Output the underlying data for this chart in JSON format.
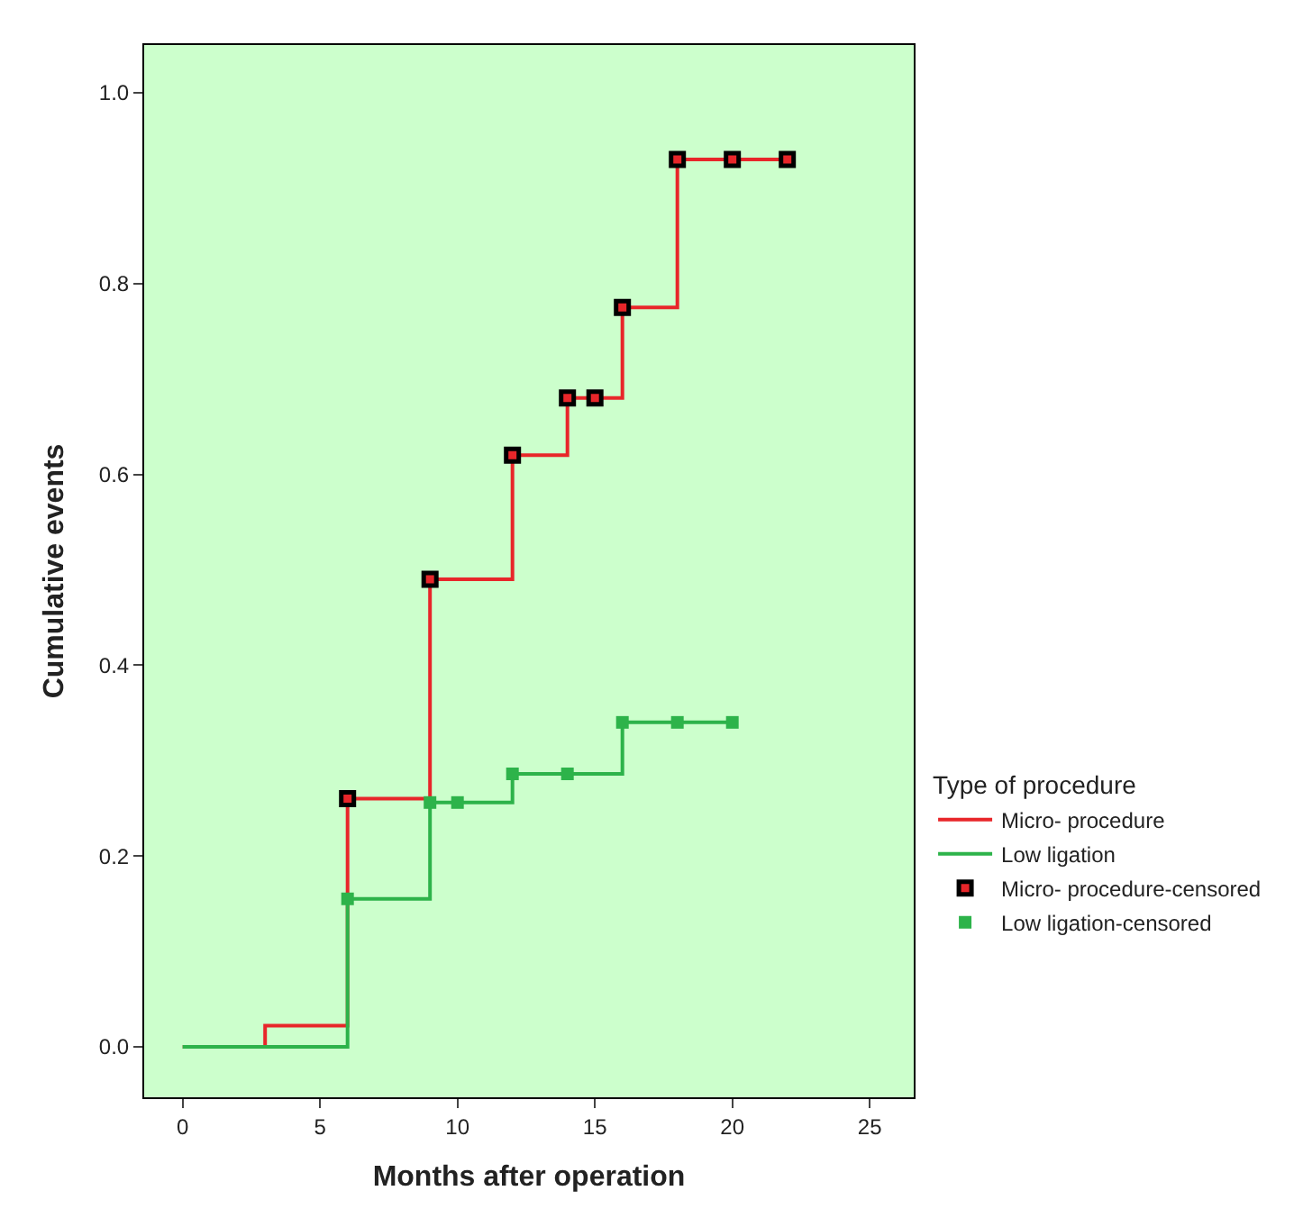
{
  "chart_data": {
    "type": "step",
    "xlabel": "Months after operation",
    "ylabel": "Cumulative events",
    "legend_title": "Type of procedure",
    "legend": "right",
    "grid": false,
    "xlim": [
      -1.4,
      26.6
    ],
    "xticks": [
      0,
      5,
      10,
      15,
      20,
      25
    ],
    "ylim": [
      -0.053,
      1.05
    ],
    "yticks": [
      {
        "value": 0,
        "label": "0.0"
      },
      {
        "value": 0.2,
        "label": "0.2"
      },
      {
        "value": 0.4,
        "label": "0.4"
      },
      {
        "value": 0.6,
        "label": "0.6"
      },
      {
        "value": 0.8,
        "label": "0.8"
      },
      {
        "value": 1.0,
        "label": "1.0"
      }
    ],
    "series": [
      {
        "name": "Micro- procedure",
        "color": "#e8262a",
        "marker": "none",
        "x": [
          0,
          3,
          6,
          9,
          12,
          14,
          16,
          18,
          22
        ],
        "values": [
          0,
          0.022,
          0.26,
          0.49,
          0.62,
          0.68,
          0.775,
          0.93,
          0.93
        ]
      },
      {
        "name": "Low ligation",
        "color": "#2db34a",
        "marker": "none",
        "x": [
          0,
          6,
          9,
          12,
          16,
          20
        ],
        "values": [
          0,
          0.155,
          0.256,
          0.286,
          0.34,
          0.34
        ]
      },
      {
        "name": "Micro- procedure-censored",
        "type": "scatter",
        "color": "#e8262a",
        "marker": "square",
        "x": [
          6,
          9,
          12,
          14,
          15,
          16,
          18,
          20,
          22
        ],
        "values": [
          0.26,
          0.49,
          0.62,
          0.68,
          0.68,
          0.775,
          0.93,
          0.93,
          0.93
        ]
      },
      {
        "name": "Low ligation-censored",
        "type": "scatter",
        "color": "#2db34a",
        "marker": "square",
        "x": [
          6,
          9,
          10,
          12,
          14,
          16,
          18,
          20
        ],
        "values": [
          0.155,
          0.256,
          0.256,
          0.286,
          0.286,
          0.34,
          0.34,
          0.34
        ]
      }
    ]
  }
}
